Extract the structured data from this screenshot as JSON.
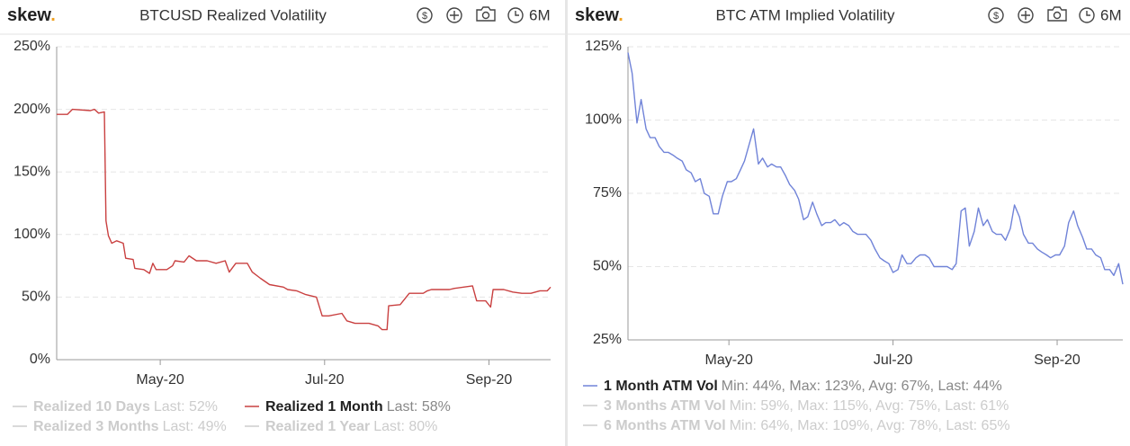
{
  "chart_data": [
    {
      "type": "line",
      "logo": "skew",
      "logo_dot": ".",
      "title": "BTCUSD Realized Volatility",
      "currency_icon": "$",
      "period": "6M",
      "xlim": [
        3.74,
        9.75
      ],
      "xticks": [
        {
          "value": 5,
          "label": "May-20"
        },
        {
          "value": 7,
          "label": "Jul-20"
        },
        {
          "value": 9,
          "label": "Sep-20"
        }
      ],
      "ylim": [
        0,
        250
      ],
      "yticks": [
        {
          "value": 0,
          "label": "0%"
        },
        {
          "value": 50,
          "label": "50%"
        },
        {
          "value": 100,
          "label": "100%"
        },
        {
          "value": 150,
          "label": "150%"
        },
        {
          "value": 200,
          "label": "200%"
        },
        {
          "value": 250,
          "label": "250%"
        }
      ],
      "grid": true,
      "series": [
        {
          "name": "Realized 10 Days",
          "legend_note": "Last: 52%",
          "visible": false,
          "color": "#cccccc"
        },
        {
          "name": "Realized 1 Month",
          "legend_note": "Last: 58%",
          "visible": true,
          "color": "#c94040",
          "x": [
            3.74,
            3.87,
            3.93,
            4.15,
            4.2,
            4.25,
            4.32,
            4.34,
            4.37,
            4.41,
            4.47,
            4.55,
            4.58,
            4.67,
            4.69,
            4.8,
            4.87,
            4.91,
            4.95,
            5.08,
            5.15,
            5.18,
            5.29,
            5.35,
            5.44,
            5.57,
            5.68,
            5.79,
            5.84,
            5.92,
            6.06,
            6.12,
            6.22,
            6.33,
            6.5,
            6.55,
            6.66,
            6.77,
            6.9,
            6.97,
            7.05,
            7.21,
            7.27,
            7.37,
            7.54,
            7.65,
            7.7,
            7.76,
            7.78,
            7.92,
            8.03,
            8.2,
            8.25,
            8.3,
            8.52,
            8.58,
            8.8,
            8.85,
            8.96,
            9.02,
            9.05,
            9.18,
            9.29,
            9.4,
            9.51,
            9.62,
            9.71,
            9.75
          ],
          "values": [
            196,
            196,
            200,
            199,
            200,
            197,
            198,
            111,
            99,
            93,
            95,
            93,
            81,
            80,
            73,
            72,
            69,
            77,
            72,
            72,
            75,
            79,
            78,
            83,
            79,
            79,
            77,
            79,
            70,
            77,
            77,
            70,
            65,
            60,
            58,
            56,
            55,
            52,
            50,
            35,
            35,
            37,
            31,
            29,
            29,
            27,
            24,
            24,
            43,
            44,
            53,
            53,
            55,
            56,
            56,
            57,
            59,
            47,
            47,
            42,
            56,
            56,
            54,
            53,
            53,
            55,
            55,
            58
          ]
        },
        {
          "name": "Realized 3 Months",
          "legend_note": "Last: 49%",
          "visible": false,
          "color": "#cccccc"
        },
        {
          "name": "Realized 1 Year",
          "legend_note": "Last: 80%",
          "visible": false,
          "color": "#cccccc"
        }
      ]
    },
    {
      "type": "line",
      "logo": "skew",
      "logo_dot": ".",
      "title": "BTC ATM Implied Volatility",
      "currency_icon": "$",
      "period": "6M",
      "xlim": [
        3.77,
        9.8
      ],
      "xticks": [
        {
          "value": 5,
          "label": "May-20"
        },
        {
          "value": 7,
          "label": "Jul-20"
        },
        {
          "value": 9,
          "label": "Sep-20"
        }
      ],
      "ylim": [
        25,
        125
      ],
      "yticks": [
        {
          "value": 25,
          "label": "25%"
        },
        {
          "value": 50,
          "label": "50%"
        },
        {
          "value": 75,
          "label": "75%"
        },
        {
          "value": 100,
          "label": "100%"
        },
        {
          "value": 125,
          "label": "125%"
        }
      ],
      "grid": true,
      "series": [
        {
          "name": "1 Month ATM Vol",
          "legend_note": "Min: 44%, Max: 123%, Avg: 67%, Last: 44%",
          "visible": true,
          "color": "#7083d8",
          "x": [
            3.77,
            3.82,
            3.88,
            3.93,
            3.99,
            4.04,
            4.1,
            4.15,
            4.21,
            4.26,
            4.32,
            4.37,
            4.43,
            4.48,
            4.54,
            4.59,
            4.65,
            4.7,
            4.76,
            4.81,
            4.87,
            4.92,
            4.98,
            5.03,
            5.09,
            5.14,
            5.19,
            5.25,
            5.3,
            5.36,
            5.41,
            5.47,
            5.52,
            5.58,
            5.63,
            5.69,
            5.74,
            5.8,
            5.85,
            5.91,
            5.96,
            6.02,
            6.07,
            6.13,
            6.18,
            6.24,
            6.29,
            6.35,
            6.4,
            6.46,
            6.51,
            6.57,
            6.62,
            6.67,
            6.73,
            6.78,
            6.84,
            6.89,
            6.95,
            7.0,
            7.06,
            7.11,
            7.17,
            7.22,
            7.28,
            7.33,
            7.39,
            7.44,
            7.5,
            7.55,
            7.61,
            7.66,
            7.72,
            7.77,
            7.83,
            7.88,
            7.93,
            7.99,
            8.04,
            8.1,
            8.15,
            8.21,
            8.26,
            8.32,
            8.37,
            8.43,
            8.48,
            8.54,
            8.59,
            8.65,
            8.7,
            8.76,
            8.81,
            8.87,
            8.92,
            8.98,
            9.03,
            9.09,
            9.14,
            9.2,
            9.25,
            9.31,
            9.36,
            9.42,
            9.47,
            9.53,
            9.58,
            9.64,
            9.69,
            9.75,
            9.8
          ],
          "values": [
            123,
            116,
            99,
            107,
            97,
            94,
            94,
            91,
            89,
            89,
            88,
            87,
            86,
            83,
            82,
            79,
            80,
            75,
            74,
            68,
            68,
            74,
            79,
            79,
            80,
            83,
            86,
            92,
            97,
            85,
            87,
            84,
            85,
            84,
            84,
            81,
            78,
            76,
            73,
            66,
            67,
            72,
            68,
            64,
            65,
            65,
            66,
            64,
            65,
            64,
            62,
            61,
            61,
            61,
            59,
            56,
            53,
            52,
            51,
            48,
            49,
            54,
            51,
            51,
            53,
            54,
            54,
            53,
            50,
            50,
            50,
            50,
            49,
            51,
            69,
            70,
            57,
            62,
            70,
            64,
            66,
            62,
            61,
            61,
            59,
            63,
            71,
            67,
            61,
            58,
            58,
            56,
            55,
            54,
            53,
            54,
            54,
            57,
            65,
            69,
            64,
            60,
            56,
            56,
            54,
            53,
            49,
            49,
            47,
            51,
            44
          ]
        },
        {
          "name": "3 Months ATM Vol",
          "legend_note": "Min: 59%, Max: 115%, Avg: 75%, Last: 61%",
          "visible": false,
          "color": "#cccccc"
        },
        {
          "name": "6 Months ATM Vol",
          "legend_note": "Min: 64%, Max: 109%, Avg: 78%, Last: 65%",
          "visible": false,
          "color": "#cccccc"
        }
      ]
    }
  ]
}
